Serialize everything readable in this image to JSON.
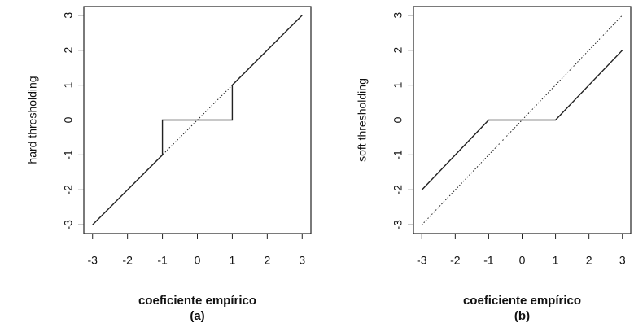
{
  "chart_data": [
    {
      "type": "line",
      "ylabel": "hard thresholding",
      "xlabel": "coeficiente empírico",
      "caption": "(a)",
      "xlim": [
        -3.25,
        3.25
      ],
      "ylim": [
        -3.25,
        3.25
      ],
      "xticks": [
        -3,
        -2,
        -1,
        0,
        1,
        2,
        3
      ],
      "yticks": [
        -3,
        -2,
        -1,
        0,
        1,
        2,
        3
      ],
      "series": [
        {
          "color": "#222222",
          "style": "dotted",
          "x": [
            -3,
            3
          ],
          "values": [
            -3,
            3
          ]
        },
        {
          "color": "#222222",
          "style": "solid",
          "x": [
            -3,
            -1,
            -1,
            1,
            1,
            3
          ],
          "values": [
            -3,
            -1,
            0,
            0,
            1,
            3
          ]
        }
      ]
    },
    {
      "type": "line",
      "ylabel": "soft thresholding",
      "xlabel": "coeficiente empírico",
      "caption": "(b)",
      "xlim": [
        -3.25,
        3.25
      ],
      "ylim": [
        -3.25,
        3.25
      ],
      "xticks": [
        -3,
        -2,
        -1,
        0,
        1,
        2,
        3
      ],
      "yticks": [
        -3,
        -2,
        -1,
        0,
        1,
        2,
        3
      ],
      "series": [
        {
          "color": "#222222",
          "style": "dotted",
          "x": [
            -3,
            3
          ],
          "values": [
            -3,
            3
          ]
        },
        {
          "color": "#222222",
          "style": "solid",
          "x": [
            -3,
            -1,
            1,
            3
          ],
          "values": [
            -2,
            0,
            0,
            2
          ]
        }
      ]
    }
  ]
}
